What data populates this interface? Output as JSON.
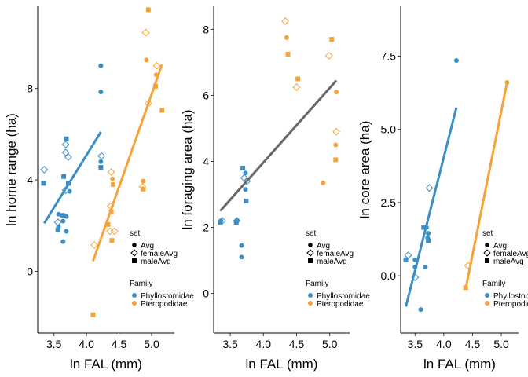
{
  "colors": {
    "Phyllostomidae": "#3a8fc4",
    "Pteropodidae": "#f6a33a",
    "fit_combined": "#676767"
  },
  "legend": {
    "set_title": "set",
    "set_items": [
      "Avg",
      "femaleAvg",
      "maleAvg"
    ],
    "family_title": "Family",
    "family_items": [
      "Phyllostomidae",
      "Pteropodidae"
    ]
  },
  "chart_data": [
    {
      "type": "scatter",
      "title": "",
      "xlabel": "ln FAL (mm)",
      "ylabel": "ln home range (ha)",
      "xlim": [
        3.25,
        5.35
      ],
      "ylim": [
        -2.7,
        11.6
      ],
      "xticks": [
        3.5,
        4.0,
        4.5,
        5.0
      ],
      "xtick_labels": [
        "3.5",
        "4.0",
        "4.5",
        "5.0"
      ],
      "yticks": [
        0,
        4,
        8
      ],
      "ytick_labels": [
        "0",
        "4",
        "8"
      ],
      "grid": false,
      "legend_position": "right",
      "points": [
        {
          "x": 4.22,
          "y": 9.0,
          "family": "Phyllostomidae",
          "set": "Avg"
        },
        {
          "x": 4.22,
          "y": 7.85,
          "family": "Phyllostomidae",
          "set": "Avg"
        },
        {
          "x": 4.22,
          "y": 4.8,
          "family": "Phyllostomidae",
          "set": "Avg"
        },
        {
          "x": 3.57,
          "y": 2.5,
          "family": "Phyllostomidae",
          "set": "Avg"
        },
        {
          "x": 3.62,
          "y": 2.45,
          "family": "Phyllostomidae",
          "set": "Avg"
        },
        {
          "x": 3.65,
          "y": 2.45,
          "family": "Phyllostomidae",
          "set": "Avg"
        },
        {
          "x": 3.69,
          "y": 2.4,
          "family": "Phyllostomidae",
          "set": "Avg"
        },
        {
          "x": 3.64,
          "y": 2.2,
          "family": "Phyllostomidae",
          "set": "Avg"
        },
        {
          "x": 3.57,
          "y": 1.95,
          "family": "Phyllostomidae",
          "set": "Avg"
        },
        {
          "x": 3.69,
          "y": 1.75,
          "family": "Phyllostomidae",
          "set": "Avg"
        },
        {
          "x": 3.64,
          "y": 1.3,
          "family": "Phyllostomidae",
          "set": "Avg"
        },
        {
          "x": 3.74,
          "y": 3.5,
          "family": "Phyllostomidae",
          "set": "Avg"
        },
        {
          "x": 3.35,
          "y": 4.45,
          "family": "Phyllostomidae",
          "set": "femaleAvg"
        },
        {
          "x": 3.68,
          "y": 5.55,
          "family": "Phyllostomidae",
          "set": "femaleAvg"
        },
        {
          "x": 3.68,
          "y": 5.2,
          "family": "Phyllostomidae",
          "set": "femaleAvg"
        },
        {
          "x": 3.72,
          "y": 5.0,
          "family": "Phyllostomidae",
          "set": "femaleAvg"
        },
        {
          "x": 3.56,
          "y": 2.15,
          "family": "Phyllostomidae",
          "set": "femaleAvg"
        },
        {
          "x": 3.68,
          "y": 3.55,
          "family": "Phyllostomidae",
          "set": "femaleAvg"
        },
        {
          "x": 4.23,
          "y": 5.05,
          "family": "Phyllostomidae",
          "set": "femaleAvg"
        },
        {
          "x": 3.34,
          "y": 3.85,
          "family": "Phyllostomidae",
          "set": "maleAvg"
        },
        {
          "x": 3.69,
          "y": 5.8,
          "family": "Phyllostomidae",
          "set": "maleAvg"
        },
        {
          "x": 3.65,
          "y": 4.15,
          "family": "Phyllostomidae",
          "set": "maleAvg"
        },
        {
          "x": 3.72,
          "y": 3.85,
          "family": "Phyllostomidae",
          "set": "maleAvg"
        },
        {
          "x": 3.56,
          "y": 1.8,
          "family": "Phyllostomidae",
          "set": "maleAvg"
        },
        {
          "x": 4.22,
          "y": 4.55,
          "family": "Phyllostomidae",
          "set": "maleAvg"
        },
        {
          "x": 4.92,
          "y": 9.25,
          "family": "Pteropodidae",
          "set": "Avg"
        },
        {
          "x": 5.07,
          "y": 8.6,
          "family": "Pteropodidae",
          "set": "Avg"
        },
        {
          "x": 4.87,
          "y": 3.95,
          "family": "Pteropodidae",
          "set": "Avg"
        },
        {
          "x": 4.4,
          "y": 4.05,
          "family": "Pteropodidae",
          "set": "Avg"
        },
        {
          "x": 4.91,
          "y": 10.45,
          "family": "Pteropodidae",
          "set": "femaleAvg"
        },
        {
          "x": 5.08,
          "y": 9.0,
          "family": "Pteropodidae",
          "set": "femaleAvg"
        },
        {
          "x": 4.95,
          "y": 7.35,
          "family": "Pteropodidae",
          "set": "femaleAvg"
        },
        {
          "x": 4.38,
          "y": 4.35,
          "family": "Pteropodidae",
          "set": "femaleAvg"
        },
        {
          "x": 4.37,
          "y": 2.85,
          "family": "Pteropodidae",
          "set": "femaleAvg"
        },
        {
          "x": 4.36,
          "y": 1.75,
          "family": "Pteropodidae",
          "set": "femaleAvg"
        },
        {
          "x": 4.43,
          "y": 1.75,
          "family": "Pteropodidae",
          "set": "femaleAvg"
        },
        {
          "x": 4.12,
          "y": 1.15,
          "family": "Pteropodidae",
          "set": "femaleAvg"
        },
        {
          "x": 4.86,
          "y": 3.7,
          "family": "Pteropodidae",
          "set": "femaleAvg"
        },
        {
          "x": 4.95,
          "y": 11.45,
          "family": "Pteropodidae",
          "set": "maleAvg"
        },
        {
          "x": 5.06,
          "y": 8.1,
          "family": "Pteropodidae",
          "set": "maleAvg"
        },
        {
          "x": 5.16,
          "y": 7.05,
          "family": "Pteropodidae",
          "set": "maleAvg"
        },
        {
          "x": 4.41,
          "y": 3.8,
          "family": "Pteropodidae",
          "set": "maleAvg"
        },
        {
          "x": 4.38,
          "y": 2.6,
          "family": "Pteropodidae",
          "set": "maleAvg"
        },
        {
          "x": 4.33,
          "y": 2.05,
          "family": "Pteropodidae",
          "set": "maleAvg"
        },
        {
          "x": 4.39,
          "y": 1.35,
          "family": "Pteropodidae",
          "set": "maleAvg"
        },
        {
          "x": 4.87,
          "y": 3.6,
          "family": "Pteropodidae",
          "set": "maleAvg"
        },
        {
          "x": 4.1,
          "y": -1.9,
          "family": "Pteropodidae",
          "set": "maleAvg"
        }
      ],
      "fits": [
        {
          "group": "Phyllostomidae",
          "x": [
            3.35,
            4.22
          ],
          "y": [
            2.1,
            6.1
          ]
        },
        {
          "group": "Pteropodidae",
          "x": [
            4.1,
            5.16
          ],
          "y": [
            0.45,
            9.05
          ]
        }
      ]
    },
    {
      "type": "scatter",
      "title": "",
      "xlabel": "ln FAL (mm)",
      "ylabel": "ln foraging area (ha)",
      "xlim": [
        3.25,
        5.3
      ],
      "ylim": [
        -1.2,
        8.7
      ],
      "xticks": [
        3.5,
        4.0,
        4.5,
        5.0
      ],
      "xtick_labels": [
        "3.5",
        "4.0",
        "4.5",
        "5.0"
      ],
      "yticks": [
        0,
        2,
        4,
        6,
        8
      ],
      "ytick_labels": [
        "0",
        "2",
        "4",
        "6",
        "8"
      ],
      "grid": false,
      "legend_position": "right",
      "points": [
        {
          "x": 3.73,
          "y": 3.65,
          "family": "Phyllostomidae",
          "set": "Avg"
        },
        {
          "x": 3.73,
          "y": 3.15,
          "family": "Phyllostomidae",
          "set": "Avg"
        },
        {
          "x": 3.6,
          "y": 2.2,
          "family": "Phyllostomidae",
          "set": "Avg"
        },
        {
          "x": 3.36,
          "y": 2.2,
          "family": "Phyllostomidae",
          "set": "Avg"
        },
        {
          "x": 3.67,
          "y": 1.45,
          "family": "Phyllostomidae",
          "set": "Avg"
        },
        {
          "x": 3.67,
          "y": 1.1,
          "family": "Phyllostomidae",
          "set": "Avg"
        },
        {
          "x": 3.71,
          "y": 3.5,
          "family": "Phyllostomidae",
          "set": "femaleAvg"
        },
        {
          "x": 3.75,
          "y": 3.4,
          "family": "Phyllostomidae",
          "set": "femaleAvg"
        },
        {
          "x": 3.6,
          "y": 2.2,
          "family": "Phyllostomidae",
          "set": "femaleAvg"
        },
        {
          "x": 3.38,
          "y": 2.2,
          "family": "Phyllostomidae",
          "set": "femaleAvg"
        },
        {
          "x": 3.69,
          "y": 3.8,
          "family": "Phyllostomidae",
          "set": "maleAvg"
        },
        {
          "x": 3.74,
          "y": 2.8,
          "family": "Phyllostomidae",
          "set": "maleAvg"
        },
        {
          "x": 3.59,
          "y": 2.15,
          "family": "Phyllostomidae",
          "set": "maleAvg"
        },
        {
          "x": 3.35,
          "y": 2.15,
          "family": "Phyllostomidae",
          "set": "maleAvg"
        },
        {
          "x": 4.35,
          "y": 7.75,
          "family": "Pteropodidae",
          "set": "Avg"
        },
        {
          "x": 5.1,
          "y": 6.1,
          "family": "Pteropodidae",
          "set": "Avg"
        },
        {
          "x": 5.09,
          "y": 4.5,
          "family": "Pteropodidae",
          "set": "Avg"
        },
        {
          "x": 4.9,
          "y": 3.35,
          "family": "Pteropodidae",
          "set": "Avg"
        },
        {
          "x": 4.33,
          "y": 8.25,
          "family": "Pteropodidae",
          "set": "femaleAvg"
        },
        {
          "x": 4.99,
          "y": 7.2,
          "family": "Pteropodidae",
          "set": "femaleAvg"
        },
        {
          "x": 4.5,
          "y": 6.25,
          "family": "Pteropodidae",
          "set": "femaleAvg"
        },
        {
          "x": 5.1,
          "y": 4.9,
          "family": "Pteropodidae",
          "set": "femaleAvg"
        },
        {
          "x": 5.03,
          "y": 7.7,
          "family": "Pteropodidae",
          "set": "maleAvg"
        },
        {
          "x": 4.37,
          "y": 7.25,
          "family": "Pteropodidae",
          "set": "maleAvg"
        },
        {
          "x": 4.52,
          "y": 6.5,
          "family": "Pteropodidae",
          "set": "maleAvg"
        },
        {
          "x": 5.09,
          "y": 4.05,
          "family": "Pteropodidae",
          "set": "maleAvg"
        }
      ],
      "fits": [
        {
          "group": "combined",
          "x": [
            3.35,
            5.1
          ],
          "y": [
            2.5,
            6.45
          ]
        }
      ]
    },
    {
      "type": "scatter",
      "title": "",
      "xlabel": "ln FAL (mm)",
      "ylabel": "ln core area (ha)",
      "xlim": [
        3.25,
        5.3
      ],
      "ylim": [
        -1.95,
        9.2
      ],
      "xticks": [
        3.5,
        4.0,
        4.5,
        5.0
      ],
      "xtick_labels": [
        "3.5",
        "4.0",
        "4.5",
        "5.0"
      ],
      "yticks": [
        0.0,
        2.5,
        5.0,
        7.5
      ],
      "ytick_labels": [
        "0.0",
        "2.5",
        "5.0",
        "7.5"
      ],
      "grid": false,
      "legend_position": "right",
      "points": [
        {
          "x": 4.22,
          "y": 7.35,
          "family": "Phyllostomidae",
          "set": "Avg"
        },
        {
          "x": 3.7,
          "y": 1.65,
          "family": "Phyllostomidae",
          "set": "Avg"
        },
        {
          "x": 3.73,
          "y": 1.45,
          "family": "Phyllostomidae",
          "set": "Avg"
        },
        {
          "x": 3.72,
          "y": 1.3,
          "family": "Phyllostomidae",
          "set": "Avg"
        },
        {
          "x": 3.5,
          "y": 0.55,
          "family": "Phyllostomidae",
          "set": "Avg"
        },
        {
          "x": 3.5,
          "y": 0.3,
          "family": "Phyllostomidae",
          "set": "Avg"
        },
        {
          "x": 3.68,
          "y": 0.3,
          "family": "Phyllostomidae",
          "set": "Avg"
        },
        {
          "x": 3.6,
          "y": -1.15,
          "family": "Phyllostomidae",
          "set": "Avg"
        },
        {
          "x": 3.75,
          "y": 3.0,
          "family": "Phyllostomidae",
          "set": "femaleAvg"
        },
        {
          "x": 3.38,
          "y": 0.7,
          "family": "Phyllostomidae",
          "set": "femaleAvg"
        },
        {
          "x": 3.5,
          "y": -0.05,
          "family": "Phyllostomidae",
          "set": "femaleAvg"
        },
        {
          "x": 3.65,
          "y": 1.65,
          "family": "Phyllostomidae",
          "set": "maleAvg"
        },
        {
          "x": 3.73,
          "y": 1.2,
          "family": "Phyllostomidae",
          "set": "maleAvg"
        },
        {
          "x": 3.34,
          "y": 0.55,
          "family": "Phyllostomidae",
          "set": "maleAvg"
        },
        {
          "x": 5.1,
          "y": 6.6,
          "family": "Pteropodidae",
          "set": "Avg"
        },
        {
          "x": 4.42,
          "y": 0.35,
          "family": "Pteropodidae",
          "set": "femaleAvg"
        },
        {
          "x": 4.38,
          "y": -0.4,
          "family": "Pteropodidae",
          "set": "maleAvg"
        }
      ],
      "fits": [
        {
          "group": "Phyllostomidae",
          "x": [
            3.34,
            4.22
          ],
          "y": [
            -1.05,
            5.75
          ]
        },
        {
          "group": "Pteropodidae",
          "x": [
            4.38,
            5.1
          ],
          "y": [
            -0.45,
            6.6
          ]
        }
      ]
    }
  ]
}
